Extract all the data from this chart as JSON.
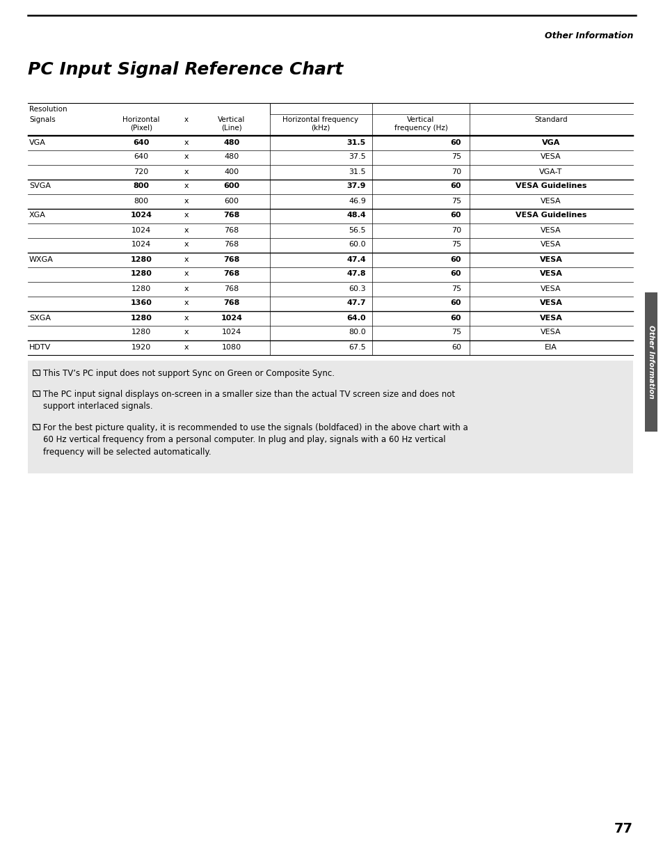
{
  "page_title": "PC Input Signal Reference Chart",
  "header_right": "Other Information",
  "sidebar_text": "Other Information",
  "rows": [
    [
      "VGA",
      "640",
      "x",
      "480",
      "31.5",
      "60",
      "VGA",
      true
    ],
    [
      "",
      "640",
      "x",
      "480",
      "37.5",
      "75",
      "VESA",
      false
    ],
    [
      "",
      "720",
      "x",
      "400",
      "31.5",
      "70",
      "VGA-T",
      false
    ],
    [
      "SVGA",
      "800",
      "x",
      "600",
      "37.9",
      "60",
      "VESA Guidelines",
      true
    ],
    [
      "",
      "800",
      "x",
      "600",
      "46.9",
      "75",
      "VESA",
      false
    ],
    [
      "XGA",
      "1024",
      "x",
      "768",
      "48.4",
      "60",
      "VESA Guidelines",
      true
    ],
    [
      "",
      "1024",
      "x",
      "768",
      "56.5",
      "70",
      "VESA",
      false
    ],
    [
      "",
      "1024",
      "x",
      "768",
      "60.0",
      "75",
      "VESA",
      false
    ],
    [
      "WXGA",
      "1280",
      "x",
      "768",
      "47.4",
      "60",
      "VESA",
      true
    ],
    [
      "",
      "1280",
      "x",
      "768",
      "47.8",
      "60",
      "VESA",
      true
    ],
    [
      "",
      "1280",
      "x",
      "768",
      "60.3",
      "75",
      "VESA",
      false
    ],
    [
      "",
      "1360",
      "x",
      "768",
      "47.7",
      "60",
      "VESA",
      true
    ],
    [
      "SXGA",
      "1280",
      "x",
      "1024",
      "64.0",
      "60",
      "VESA",
      true
    ],
    [
      "",
      "1280",
      "x",
      "1024",
      "80.0",
      "75",
      "VESA",
      false
    ],
    [
      "HDTV",
      "1920",
      "x",
      "1080",
      "67.5",
      "60",
      "EIA",
      false
    ]
  ],
  "notes": [
    "This TV’s PC input does not support Sync on Green or Composite Sync.",
    "The PC input signal displays on-screen in a smaller size than the actual TV screen size and does not\nsupport interlaced signals.",
    "For the best picture quality, it is recommended to use the signals (boldfaced) in the above chart with a\n60 Hz vertical frequency from a personal computer. In plug and play, signals with a 60 Hz vertical\nfrequency will be selected automatically."
  ],
  "page_number": "77",
  "bg_color": "#ffffff",
  "note_bg_color": "#e8e8e8",
  "sidebar_color": "#555555",
  "table_line_color": "#000000"
}
